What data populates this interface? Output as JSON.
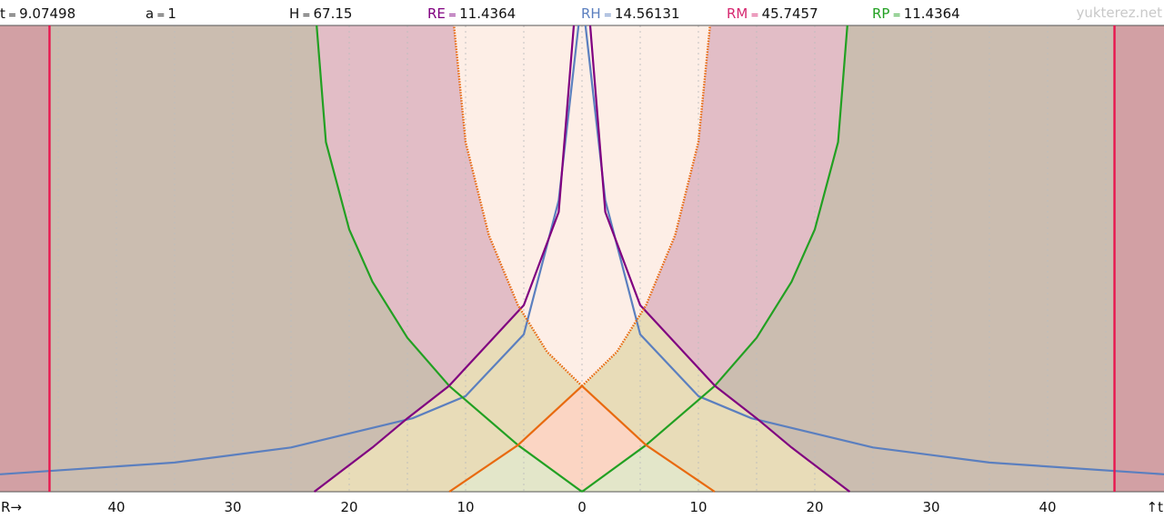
{
  "header": [
    {
      "label": "t",
      "value": "9.07498",
      "color": "#111111"
    },
    {
      "label": "a",
      "value": "1",
      "color": "#111111"
    },
    {
      "label": "H",
      "value": "67.15",
      "color": "#111111"
    },
    {
      "label": "RE",
      "value": "11.4364",
      "color": "#800080"
    },
    {
      "label": "RH",
      "value": "14.56131",
      "color": "#5b7fbf"
    },
    {
      "label": "RM",
      "value": "45.7457",
      "color": "#d62870"
    },
    {
      "label": "RP",
      "value": "11.4364",
      "color": "#22a022"
    }
  ],
  "site": "yukterez.net",
  "axis_labels": {
    "x": "R→",
    "y": "↑t"
  },
  "colors": {
    "horizon_line": "#e8174f",
    "hubble_curve": "#5b7fbf",
    "particle_horizon": "#22a022",
    "event_horizon": "#800080",
    "light_cone_orange": "#e86a10",
    "grid": "#bdbdbd"
  },
  "chart_data": {
    "type": "line",
    "title": "",
    "xlabel": "R→",
    "ylabel": "↑t",
    "x_range": [
      -50,
      50
    ],
    "x_ticks": [
      -40,
      -30,
      -20,
      -10,
      0,
      10,
      20,
      30,
      40
    ],
    "x_tick_labels": [
      "40",
      "30",
      "20",
      "10",
      "0",
      "10",
      "20",
      "30",
      "40"
    ],
    "t_now": 9.07498,
    "a": 1,
    "H": 67.15,
    "RE": 11.4364,
    "RH": 14.56131,
    "RM": 45.7457,
    "RP": 11.4364,
    "vertical_lines": [
      -45.7457,
      45.7457
    ],
    "series": [
      {
        "name": "RH",
        "kind": "hubble",
        "color": "#5b7fbf",
        "points": [
          [
            0.3,
            40
          ],
          [
            2,
            25
          ],
          [
            5,
            13.5
          ],
          [
            10,
            8.2
          ],
          [
            14.56,
            6.3
          ],
          [
            25,
            3.8
          ],
          [
            35,
            2.5
          ],
          [
            50,
            1.5
          ]
        ]
      },
      {
        "name": "RP",
        "kind": "particle",
        "color": "#22a022",
        "points": [
          [
            0,
            0
          ],
          [
            5.5,
            4.0
          ],
          [
            11.4,
            9.07
          ],
          [
            15,
            13.2
          ],
          [
            18,
            18
          ],
          [
            20,
            22.5
          ],
          [
            22,
            30
          ],
          [
            22.8,
            40
          ]
        ]
      },
      {
        "name": "RE",
        "kind": "event",
        "color": "#800080",
        "points": [
          [
            0.7,
            40
          ],
          [
            2,
            24
          ],
          [
            5,
            16
          ],
          [
            11.4364,
            9.07
          ],
          [
            15,
            6.3
          ],
          [
            18,
            3.8
          ],
          [
            23,
            0
          ]
        ]
      },
      {
        "name": "RM",
        "kind": "light-cone-past",
        "color": "#e86a10",
        "points": [
          [
            0,
            9.07
          ],
          [
            5.5,
            4.0
          ],
          [
            11.4,
            0
          ]
        ]
      },
      {
        "name": "",
        "kind": "light-cone-future",
        "color": "#e86a10",
        "points": [
          [
            0,
            9.07
          ],
          [
            3,
            12
          ],
          [
            5.5,
            16
          ],
          [
            8,
            22
          ],
          [
            10,
            30
          ],
          [
            11,
            40
          ]
        ]
      }
    ]
  }
}
